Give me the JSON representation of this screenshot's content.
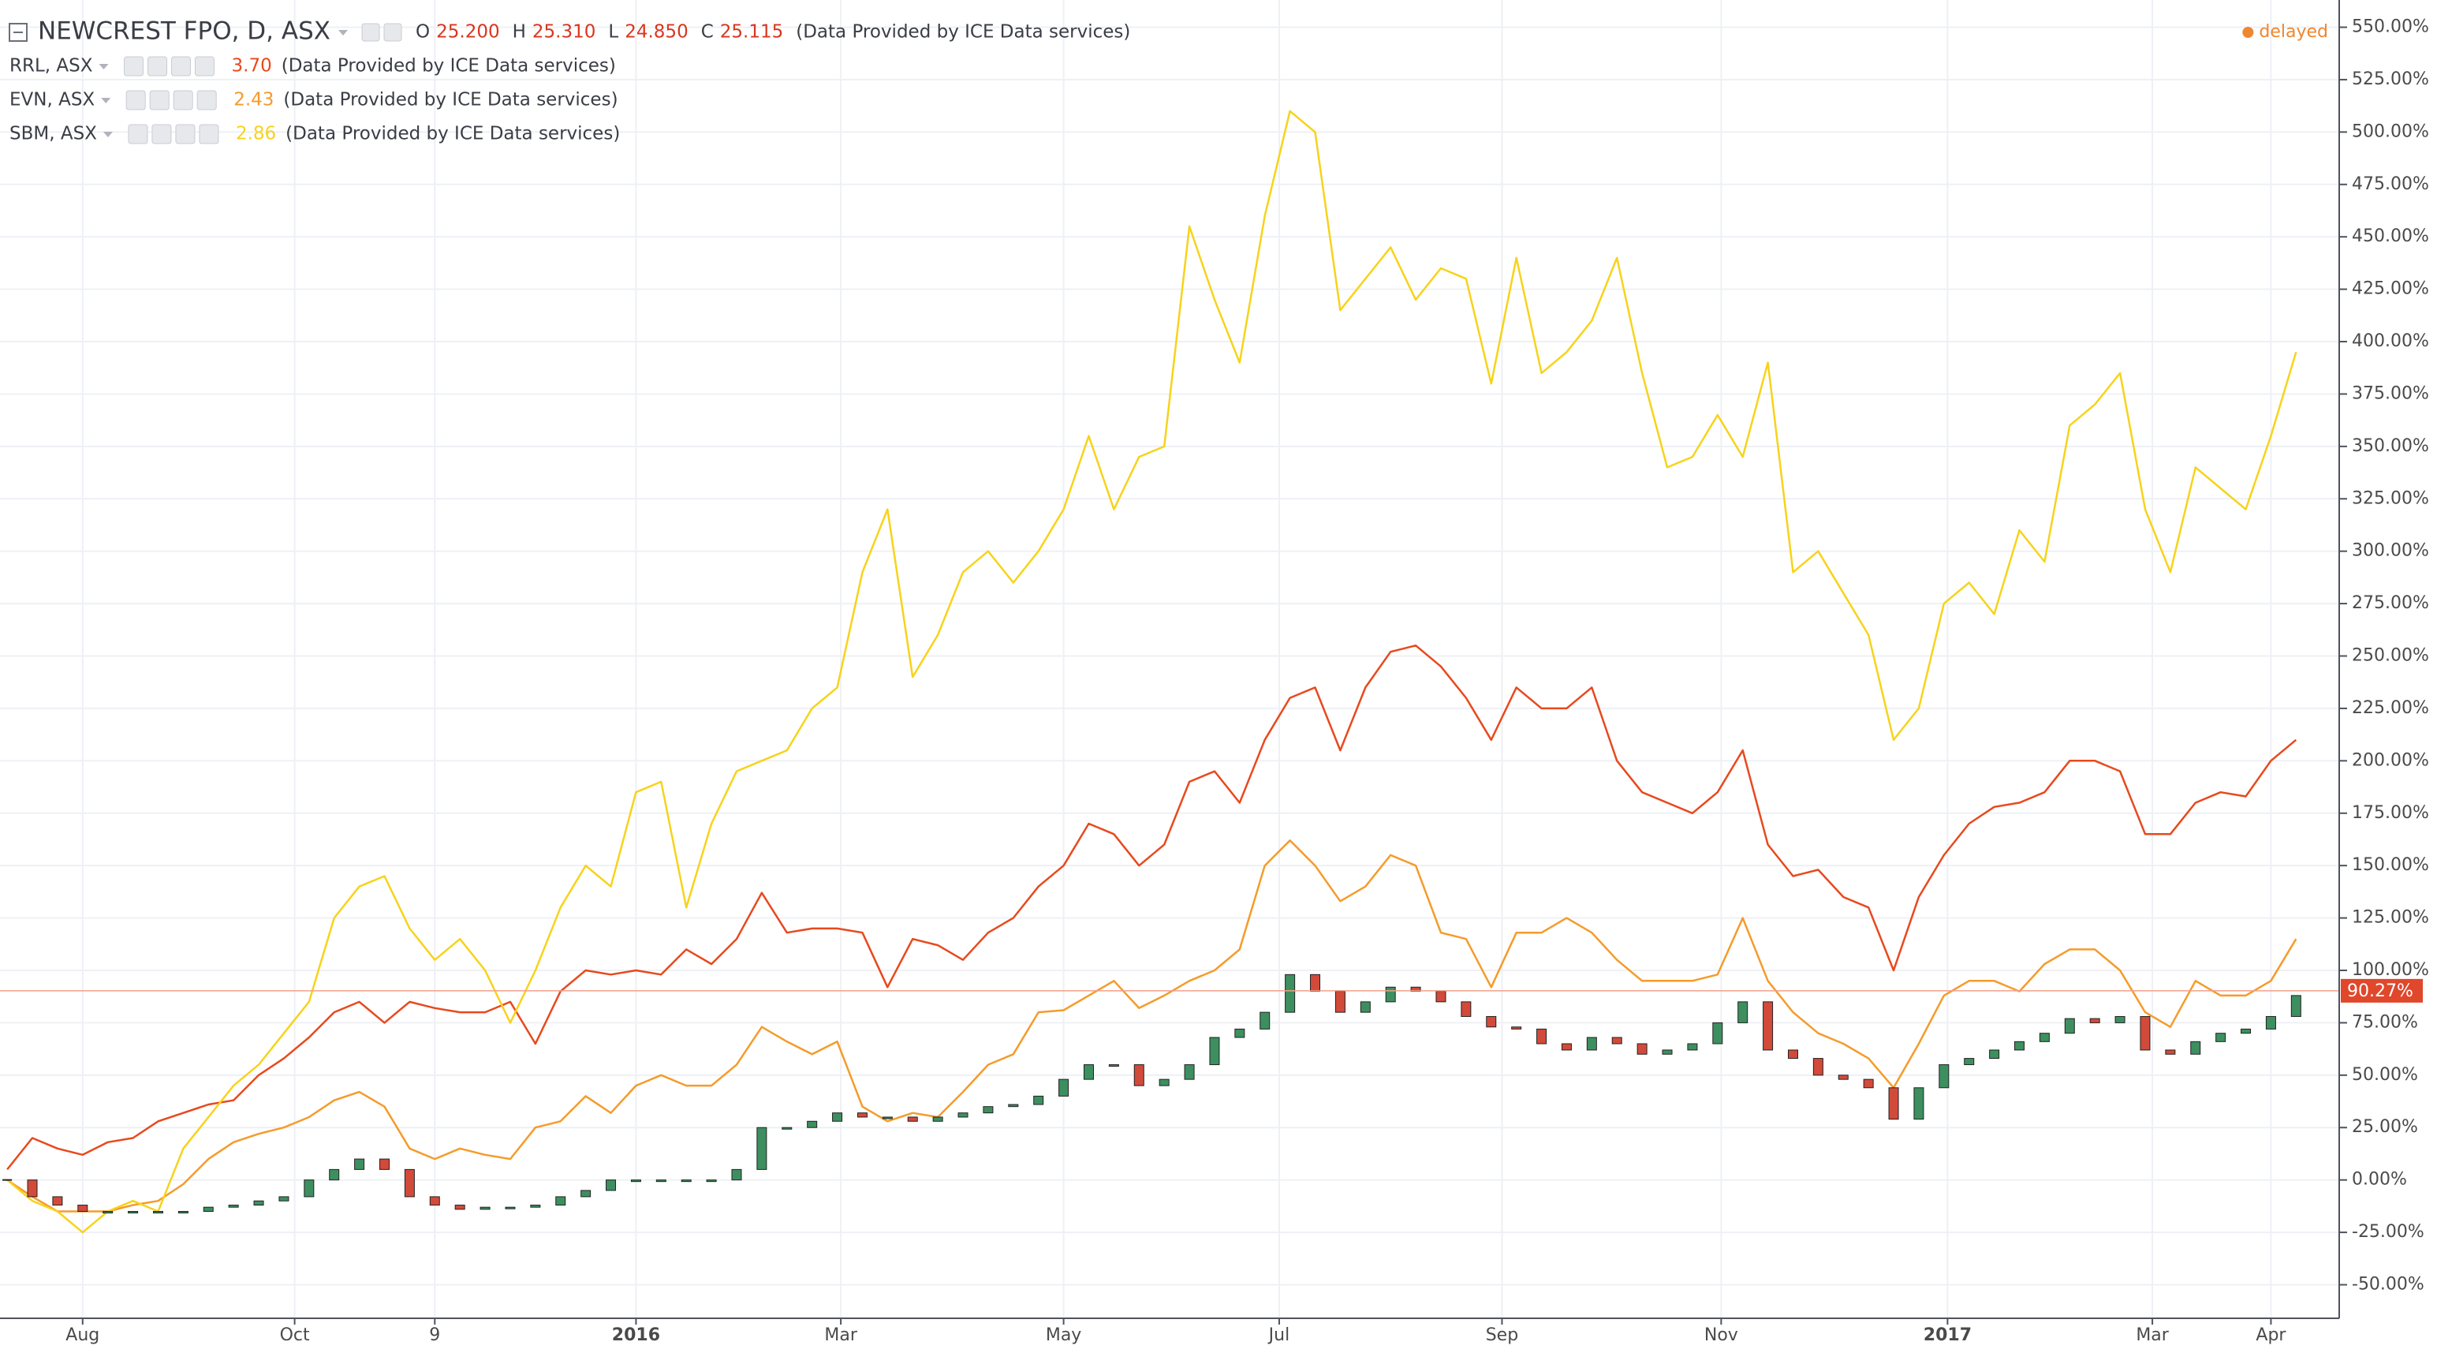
{
  "chart_data": {
    "type": "line",
    "x": [
      "2015-07-13",
      "2015-07-20",
      "2015-07-27",
      "2015-08-03",
      "2015-08-10",
      "2015-08-17",
      "2015-08-24",
      "2015-08-31",
      "2015-09-07",
      "2015-09-14",
      "2015-09-21",
      "2015-09-28",
      "2015-10-05",
      "2015-10-12",
      "2015-10-19",
      "2015-10-26",
      "2015-11-02",
      "2015-11-09",
      "2015-11-16",
      "2015-11-23",
      "2015-11-30",
      "2015-12-07",
      "2015-12-14",
      "2015-12-21",
      "2015-12-28",
      "2016-01-04",
      "2016-01-11",
      "2016-01-18",
      "2016-01-25",
      "2016-02-01",
      "2016-02-08",
      "2016-02-15",
      "2016-02-22",
      "2016-02-29",
      "2016-03-07",
      "2016-03-14",
      "2016-03-21",
      "2016-03-28",
      "2016-04-04",
      "2016-04-11",
      "2016-04-18",
      "2016-04-25",
      "2016-05-02",
      "2016-05-09",
      "2016-05-16",
      "2016-05-23",
      "2016-05-30",
      "2016-06-06",
      "2016-06-13",
      "2016-06-20",
      "2016-06-27",
      "2016-07-04",
      "2016-07-11",
      "2016-07-18",
      "2016-07-25",
      "2016-08-01",
      "2016-08-08",
      "2016-08-15",
      "2016-08-22",
      "2016-08-29",
      "2016-09-05",
      "2016-09-12",
      "2016-09-19",
      "2016-09-26",
      "2016-10-03",
      "2016-10-10",
      "2016-10-17",
      "2016-10-24",
      "2016-10-31",
      "2016-11-07",
      "2016-11-14",
      "2016-11-21",
      "2016-11-28",
      "2016-12-05",
      "2016-12-12",
      "2016-12-19",
      "2016-12-26",
      "2017-01-02",
      "2017-01-09",
      "2017-01-16",
      "2017-01-23",
      "2017-01-30",
      "2017-02-06",
      "2017-02-13",
      "2017-02-20",
      "2017-02-27",
      "2017-03-06",
      "2017-03-13",
      "2017-03-20",
      "2017-03-27",
      "2017-04-03",
      "2017-04-10"
    ],
    "series": [
      {
        "name": "NEWCREST FPO, D, ASX",
        "style": "candle",
        "up_color": "#3d8f5f",
        "down_color": "#d24a3a",
        "ohlc": [
          {
            "label": "O",
            "value": "25.200"
          },
          {
            "label": "H",
            "value": "25.310"
          },
          {
            "label": "L",
            "value": "24.850"
          },
          {
            "label": "C",
            "value": "25.115"
          }
        ],
        "source": "(Data Provided by ICE Data services)",
        "values": [
          0,
          -8,
          -12,
          -15,
          -15,
          -15,
          -15,
          -15,
          -13,
          -12,
          -10,
          -8,
          0,
          5,
          10,
          5,
          -8,
          -12,
          -14,
          -13,
          -13,
          -12,
          -8,
          -5,
          0,
          0,
          0,
          0,
          0,
          5,
          25,
          25,
          28,
          32,
          30,
          30,
          28,
          30,
          32,
          35,
          36,
          40,
          48,
          55,
          55,
          45,
          48,
          55,
          68,
          72,
          80,
          98,
          90,
          80,
          85,
          92,
          90,
          85,
          78,
          73,
          72,
          65,
          62,
          68,
          65,
          60,
          62,
          65,
          75,
          85,
          62,
          58,
          50,
          48,
          44,
          29,
          44,
          55,
          58,
          62,
          66,
          70,
          77,
          75,
          78,
          62,
          60,
          66,
          70,
          72,
          78,
          88
        ]
      },
      {
        "name": "RRL, ASX",
        "style": "line",
        "color": "#e8491d",
        "price": "3.70",
        "source": "(Data Provided by ICE Data services)",
        "values": [
          5,
          20,
          15,
          12,
          18,
          20,
          28,
          32,
          36,
          38,
          50,
          58,
          68,
          80,
          85,
          75,
          85,
          82,
          80,
          80,
          85,
          65,
          90,
          100,
          98,
          100,
          98,
          110,
          103,
          115,
          137,
          118,
          120,
          120,
          118,
          92,
          115,
          112,
          105,
          118,
          125,
          140,
          150,
          170,
          165,
          150,
          160,
          190,
          195,
          180,
          210,
          230,
          235,
          205,
          235,
          252,
          255,
          245,
          230,
          210,
          235,
          225,
          225,
          235,
          200,
          185,
          180,
          175,
          185,
          205,
          160,
          145,
          148,
          135,
          130,
          100,
          135,
          155,
          170,
          178,
          180,
          185,
          200,
          200,
          195,
          165,
          165,
          180,
          185,
          183,
          200,
          210
        ]
      },
      {
        "name": "EVN, ASX",
        "style": "line",
        "color": "#f59b2a",
        "price": "2.43",
        "source": "(Data Provided by ICE Data services)",
        "values": [
          0,
          -8,
          -15,
          -15,
          -15,
          -12,
          -10,
          -2,
          10,
          18,
          22,
          25,
          30,
          38,
          42,
          35,
          15,
          10,
          15,
          12,
          10,
          25,
          28,
          40,
          32,
          45,
          50,
          45,
          45,
          55,
          73,
          66,
          60,
          66,
          35,
          28,
          32,
          30,
          42,
          55,
          60,
          80,
          81,
          88,
          95,
          82,
          88,
          95,
          100,
          110,
          150,
          162,
          150,
          133,
          140,
          155,
          150,
          118,
          115,
          92,
          118,
          118,
          125,
          118,
          105,
          95,
          95,
          95,
          98,
          125,
          95,
          80,
          70,
          65,
          58,
          44,
          65,
          88,
          95,
          95,
          90,
          103,
          110,
          110,
          100,
          80,
          73,
          95,
          88,
          88,
          95,
          115
        ]
      },
      {
        "name": "SBM, ASX",
        "style": "line",
        "color": "#f7d31a",
        "price": "2.86",
        "source": "(Data Provided by ICE Data services)",
        "values": [
          0,
          -10,
          -15,
          -25,
          -15,
          -10,
          -15,
          15,
          30,
          45,
          55,
          70,
          85,
          125,
          140,
          145,
          120,
          105,
          115,
          100,
          75,
          100,
          130,
          150,
          140,
          185,
          190,
          130,
          170,
          195,
          200,
          205,
          225,
          235,
          290,
          320,
          240,
          260,
          290,
          300,
          285,
          300,
          320,
          355,
          320,
          345,
          350,
          455,
          420,
          390,
          460,
          510,
          500,
          415,
          430,
          445,
          420,
          435,
          430,
          380,
          440,
          385,
          395,
          410,
          440,
          385,
          340,
          345,
          365,
          345,
          390,
          290,
          300,
          280,
          260,
          210,
          225,
          275,
          285,
          270,
          310,
          295,
          360,
          370,
          385,
          320,
          290,
          340,
          330,
          320,
          355,
          395
        ]
      }
    ],
    "xlim": [
      "2015-07-11",
      "2017-04-22"
    ],
    "xticks": [
      {
        "value": "2015-08-03",
        "label": "Aug"
      },
      {
        "value": "2015-10-01",
        "label": "Oct"
      },
      {
        "value": "2015-11-09",
        "label": "9"
      },
      {
        "value": "2016-01-04",
        "label": "2016"
      },
      {
        "value": "2016-03-01",
        "label": "Mar"
      },
      {
        "value": "2016-05-02",
        "label": "May"
      },
      {
        "value": "2016-07-01",
        "label": "Jul"
      },
      {
        "value": "2016-09-01",
        "label": "Sep"
      },
      {
        "value": "2016-11-01",
        "label": "Nov"
      },
      {
        "value": "2017-01-03",
        "label": "2017"
      },
      {
        "value": "2017-03-01",
        "label": "Mar"
      },
      {
        "value": "2017-04-03",
        "label": "Apr"
      }
    ],
    "ylim": [
      -66,
      563
    ],
    "yticks": [
      {
        "value": -50,
        "label": "-50.00%"
      },
      {
        "value": -25,
        "label": "-25.00%"
      },
      {
        "value": 0,
        "label": "0.00%"
      },
      {
        "value": 25,
        "label": "25.00%"
      },
      {
        "value": 50,
        "label": "50.00%"
      },
      {
        "value": 75,
        "label": "75.00%"
      },
      {
        "value": 100,
        "label": "100.00%"
      },
      {
        "value": 125,
        "label": "125.00%"
      },
      {
        "value": 150,
        "label": "150.00%"
      },
      {
        "value": 175,
        "label": "175.00%"
      },
      {
        "value": 200,
        "label": "200.00%"
      },
      {
        "value": 225,
        "label": "225.00%"
      },
      {
        "value": 250,
        "label": "250.00%"
      },
      {
        "value": 275,
        "label": "275.00%"
      },
      {
        "value": 300,
        "label": "300.00%"
      },
      {
        "value": 325,
        "label": "325.00%"
      },
      {
        "value": 350,
        "label": "350.00%"
      },
      {
        "value": 375,
        "label": "375.00%"
      },
      {
        "value": 400,
        "label": "400.00%"
      },
      {
        "value": 425,
        "label": "425.00%"
      },
      {
        "value": 450,
        "label": "450.00%"
      },
      {
        "value": 475,
        "label": "475.00%"
      },
      {
        "value": 500,
        "label": "500.00%"
      },
      {
        "value": 525,
        "label": "525.00%"
      },
      {
        "value": 550,
        "label": "550.00%"
      }
    ],
    "grid": true,
    "last_value": {
      "value": 90.27,
      "label": "90.27%"
    },
    "status": "delayed"
  }
}
